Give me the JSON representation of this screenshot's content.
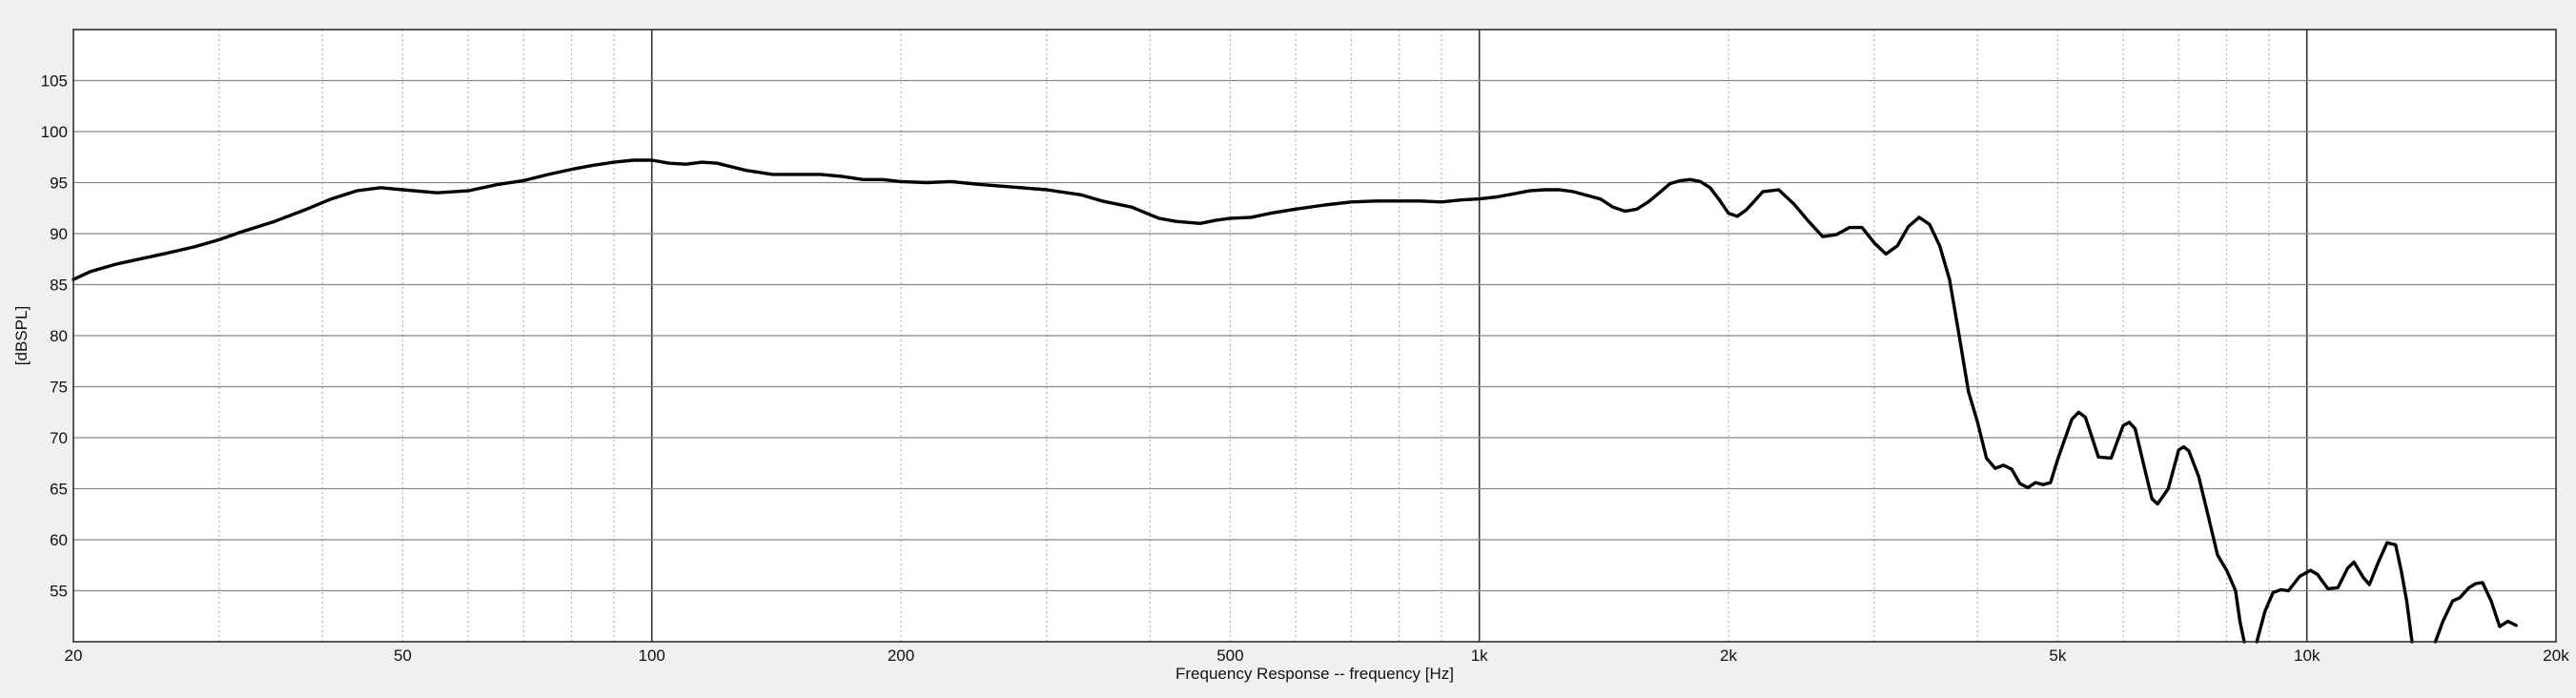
{
  "chart_data": {
    "type": "line",
    "title": "",
    "xlabel": "Frequency Response -- frequency [Hz]",
    "ylabel": "[dBSPL]",
    "x_scale": "log",
    "xlim": [
      20,
      20000
    ],
    "ylim": [
      50,
      110
    ],
    "grid": true,
    "x_ticks": [
      {
        "value": 20,
        "label": "20"
      },
      {
        "value": 50,
        "label": "50"
      },
      {
        "value": 100,
        "label": "100"
      },
      {
        "value": 200,
        "label": "200"
      },
      {
        "value": 500,
        "label": "500"
      },
      {
        "value": 1000,
        "label": "1k"
      },
      {
        "value": 2000,
        "label": "2k"
      },
      {
        "value": 5000,
        "label": "5k"
      },
      {
        "value": 10000,
        "label": "10k"
      },
      {
        "value": 20000,
        "label": "20k"
      }
    ],
    "y_ticks": [
      {
        "value": 55,
        "label": "55"
      },
      {
        "value": 60,
        "label": "60"
      },
      {
        "value": 65,
        "label": "65"
      },
      {
        "value": 70,
        "label": "70"
      },
      {
        "value": 75,
        "label": "75"
      },
      {
        "value": 80,
        "label": "80"
      },
      {
        "value": 85,
        "label": "85"
      },
      {
        "value": 90,
        "label": "90"
      },
      {
        "value": 95,
        "label": "95"
      },
      {
        "value": 100,
        "label": "100"
      },
      {
        "value": 105,
        "label": "105"
      }
    ],
    "colors": {
      "line": "#000000",
      "background": "#ffffff",
      "page": "#f0f0f0",
      "major_grid": "#333333",
      "minor_grid": "#b4b4b4"
    },
    "series": [
      {
        "name": "",
        "segments": [
          [
            [
              20,
              85.5
            ],
            [
              21,
              86.3
            ],
            [
              22.5,
              87.0
            ],
            [
              24,
              87.5
            ],
            [
              26,
              88.1
            ],
            [
              28,
              88.7
            ],
            [
              30,
              89.4
            ],
            [
              32,
              90.2
            ],
            [
              35,
              91.2
            ],
            [
              38,
              92.3
            ],
            [
              41,
              93.4
            ],
            [
              44,
              94.2
            ],
            [
              47,
              94.5
            ],
            [
              50,
              94.3
            ],
            [
              55,
              94.0
            ],
            [
              60,
              94.2
            ],
            [
              65,
              94.8
            ],
            [
              70,
              95.2
            ],
            [
              75,
              95.8
            ],
            [
              80,
              96.3
            ],
            [
              85,
              96.7
            ],
            [
              90,
              97.0
            ],
            [
              95,
              97.2
            ],
            [
              100,
              97.2
            ],
            [
              105,
              96.9
            ],
            [
              110,
              96.8
            ],
            [
              115,
              97.0
            ],
            [
              120,
              96.9
            ],
            [
              130,
              96.2
            ],
            [
              140,
              95.8
            ],
            [
              150,
              95.8
            ],
            [
              160,
              95.8
            ],
            [
              170,
              95.6
            ],
            [
              180,
              95.3
            ],
            [
              190,
              95.3
            ],
            [
              200,
              95.1
            ],
            [
              215,
              95.0
            ],
            [
              230,
              95.1
            ],
            [
              250,
              94.8
            ],
            [
              270,
              94.6
            ],
            [
              300,
              94.3
            ],
            [
              330,
              93.8
            ],
            [
              350,
              93.2
            ],
            [
              380,
              92.6
            ],
            [
              410,
              91.5
            ],
            [
              430,
              91.2
            ],
            [
              460,
              91.0
            ],
            [
              480,
              91.3
            ],
            [
              500,
              91.5
            ],
            [
              530,
              91.6
            ],
            [
              560,
              92.0
            ],
            [
              600,
              92.4
            ],
            [
              650,
              92.8
            ],
            [
              700,
              93.1
            ],
            [
              750,
              93.2
            ],
            [
              800,
              93.2
            ],
            [
              850,
              93.2
            ],
            [
              900,
              93.1
            ],
            [
              950,
              93.3
            ],
            [
              1000,
              93.4
            ],
            [
              1050,
              93.6
            ],
            [
              1100,
              93.9
            ],
            [
              1150,
              94.2
            ],
            [
              1200,
              94.3
            ],
            [
              1250,
              94.3
            ],
            [
              1300,
              94.1
            ],
            [
              1400,
              93.4
            ],
            [
              1450,
              92.6
            ],
            [
              1500,
              92.2
            ],
            [
              1550,
              92.4
            ],
            [
              1600,
              93.1
            ],
            [
              1650,
              94.0
            ],
            [
              1700,
              94.9
            ],
            [
              1750,
              95.2
            ],
            [
              1800,
              95.3
            ],
            [
              1850,
              95.1
            ],
            [
              1900,
              94.5
            ],
            [
              1950,
              93.3
            ],
            [
              2000,
              92.0
            ],
            [
              2050,
              91.7
            ],
            [
              2100,
              92.3
            ],
            [
              2150,
              93.2
            ],
            [
              2200,
              94.1
            ],
            [
              2300,
              94.3
            ],
            [
              2400,
              92.9
            ],
            [
              2500,
              91.2
            ],
            [
              2600,
              89.7
            ],
            [
              2700,
              89.9
            ],
            [
              2800,
              90.6
            ],
            [
              2900,
              90.6
            ],
            [
              3000,
              89.1
            ],
            [
              3100,
              88.0
            ],
            [
              3200,
              88.8
            ],
            [
              3300,
              90.7
            ],
            [
              3400,
              91.6
            ],
            [
              3500,
              90.9
            ],
            [
              3600,
              88.8
            ],
            [
              3700,
              85.5
            ],
            [
              3800,
              80.0
            ],
            [
              3900,
              74.5
            ],
            [
              4000,
              71.5
            ],
            [
              4100,
              68.0
            ],
            [
              4200,
              67.0
            ],
            [
              4300,
              67.3
            ],
            [
              4400,
              66.9
            ],
            [
              4500,
              65.5
            ],
            [
              4600,
              65.1
            ],
            [
              4700,
              65.6
            ],
            [
              4800,
              65.4
            ],
            [
              4900,
              65.6
            ],
            [
              5000,
              67.9
            ],
            [
              5200,
              71.8
            ],
            [
              5300,
              72.5
            ],
            [
              5400,
              72.0
            ],
            [
              5600,
              68.1
            ],
            [
              5800,
              68.0
            ],
            [
              6000,
              71.2
            ],
            [
              6100,
              71.5
            ],
            [
              6200,
              70.9
            ],
            [
              6400,
              66.2
            ],
            [
              6500,
              64.0
            ],
            [
              6600,
              63.5
            ],
            [
              6800,
              65.0
            ],
            [
              7000,
              68.8
            ],
            [
              7100,
              69.1
            ],
            [
              7200,
              68.7
            ],
            [
              7400,
              66.2
            ],
            [
              7600,
              62.3
            ],
            [
              7800,
              58.5
            ],
            [
              8000,
              57.0
            ],
            [
              8200,
              55.0
            ],
            [
              8300,
              52.0
            ],
            [
              8400,
              50.0
            ]
          ],
          [
            [
              8700,
              50.0
            ],
            [
              8900,
              53.0
            ],
            [
              9100,
              54.8
            ],
            [
              9300,
              55.1
            ],
            [
              9500,
              55.0
            ],
            [
              9800,
              56.4
            ],
            [
              10100,
              57.0
            ],
            [
              10300,
              56.6
            ],
            [
              10600,
              55.2
            ],
            [
              10900,
              55.3
            ],
            [
              11200,
              57.2
            ],
            [
              11400,
              57.8
            ],
            [
              11700,
              56.3
            ],
            [
              11900,
              55.6
            ],
            [
              12200,
              57.8
            ],
            [
              12500,
              59.7
            ],
            [
              12800,
              59.5
            ],
            [
              13000,
              57.0
            ],
            [
              13200,
              54.0
            ],
            [
              13400,
              50.0
            ]
          ],
          [
            [
              14300,
              50.0
            ],
            [
              14600,
              52.0
            ],
            [
              15000,
              54.0
            ],
            [
              15300,
              54.3
            ],
            [
              15700,
              55.3
            ],
            [
              16000,
              55.7
            ],
            [
              16300,
              55.8
            ],
            [
              16700,
              54.0
            ],
            [
              17100,
              51.5
            ],
            [
              17500,
              52.0
            ],
            [
              17900,
              51.6
            ]
          ]
        ]
      }
    ]
  }
}
